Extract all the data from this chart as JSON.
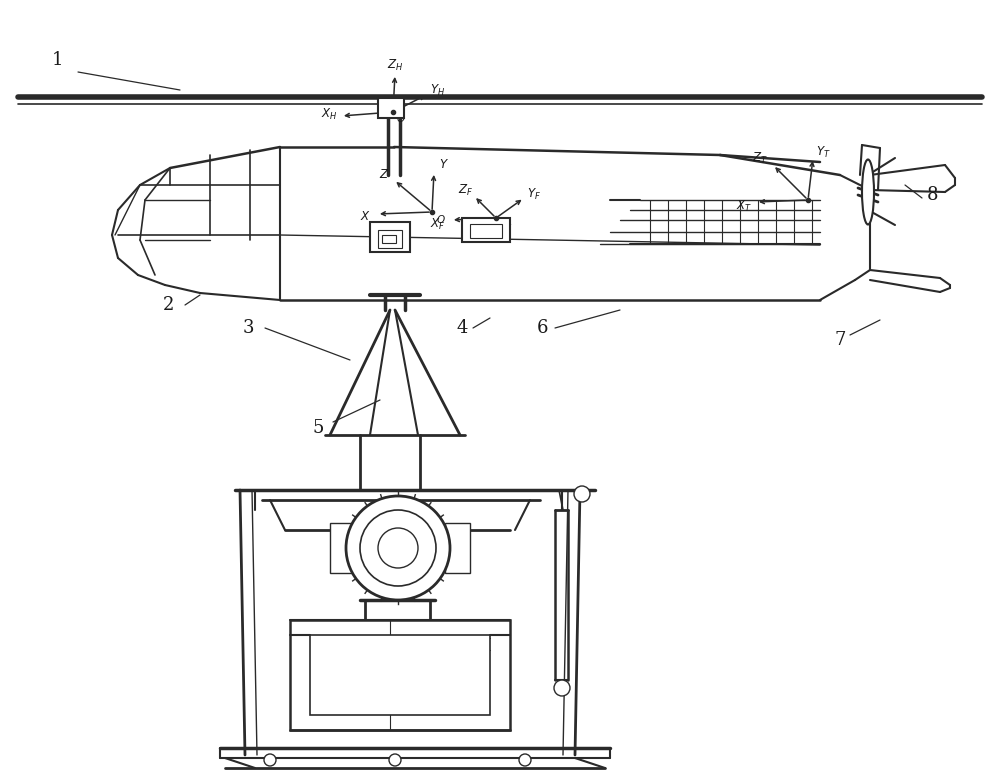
{
  "background_color": "#ffffff",
  "line_color": "#2a2a2a",
  "label_color": "#1a1a1a"
}
